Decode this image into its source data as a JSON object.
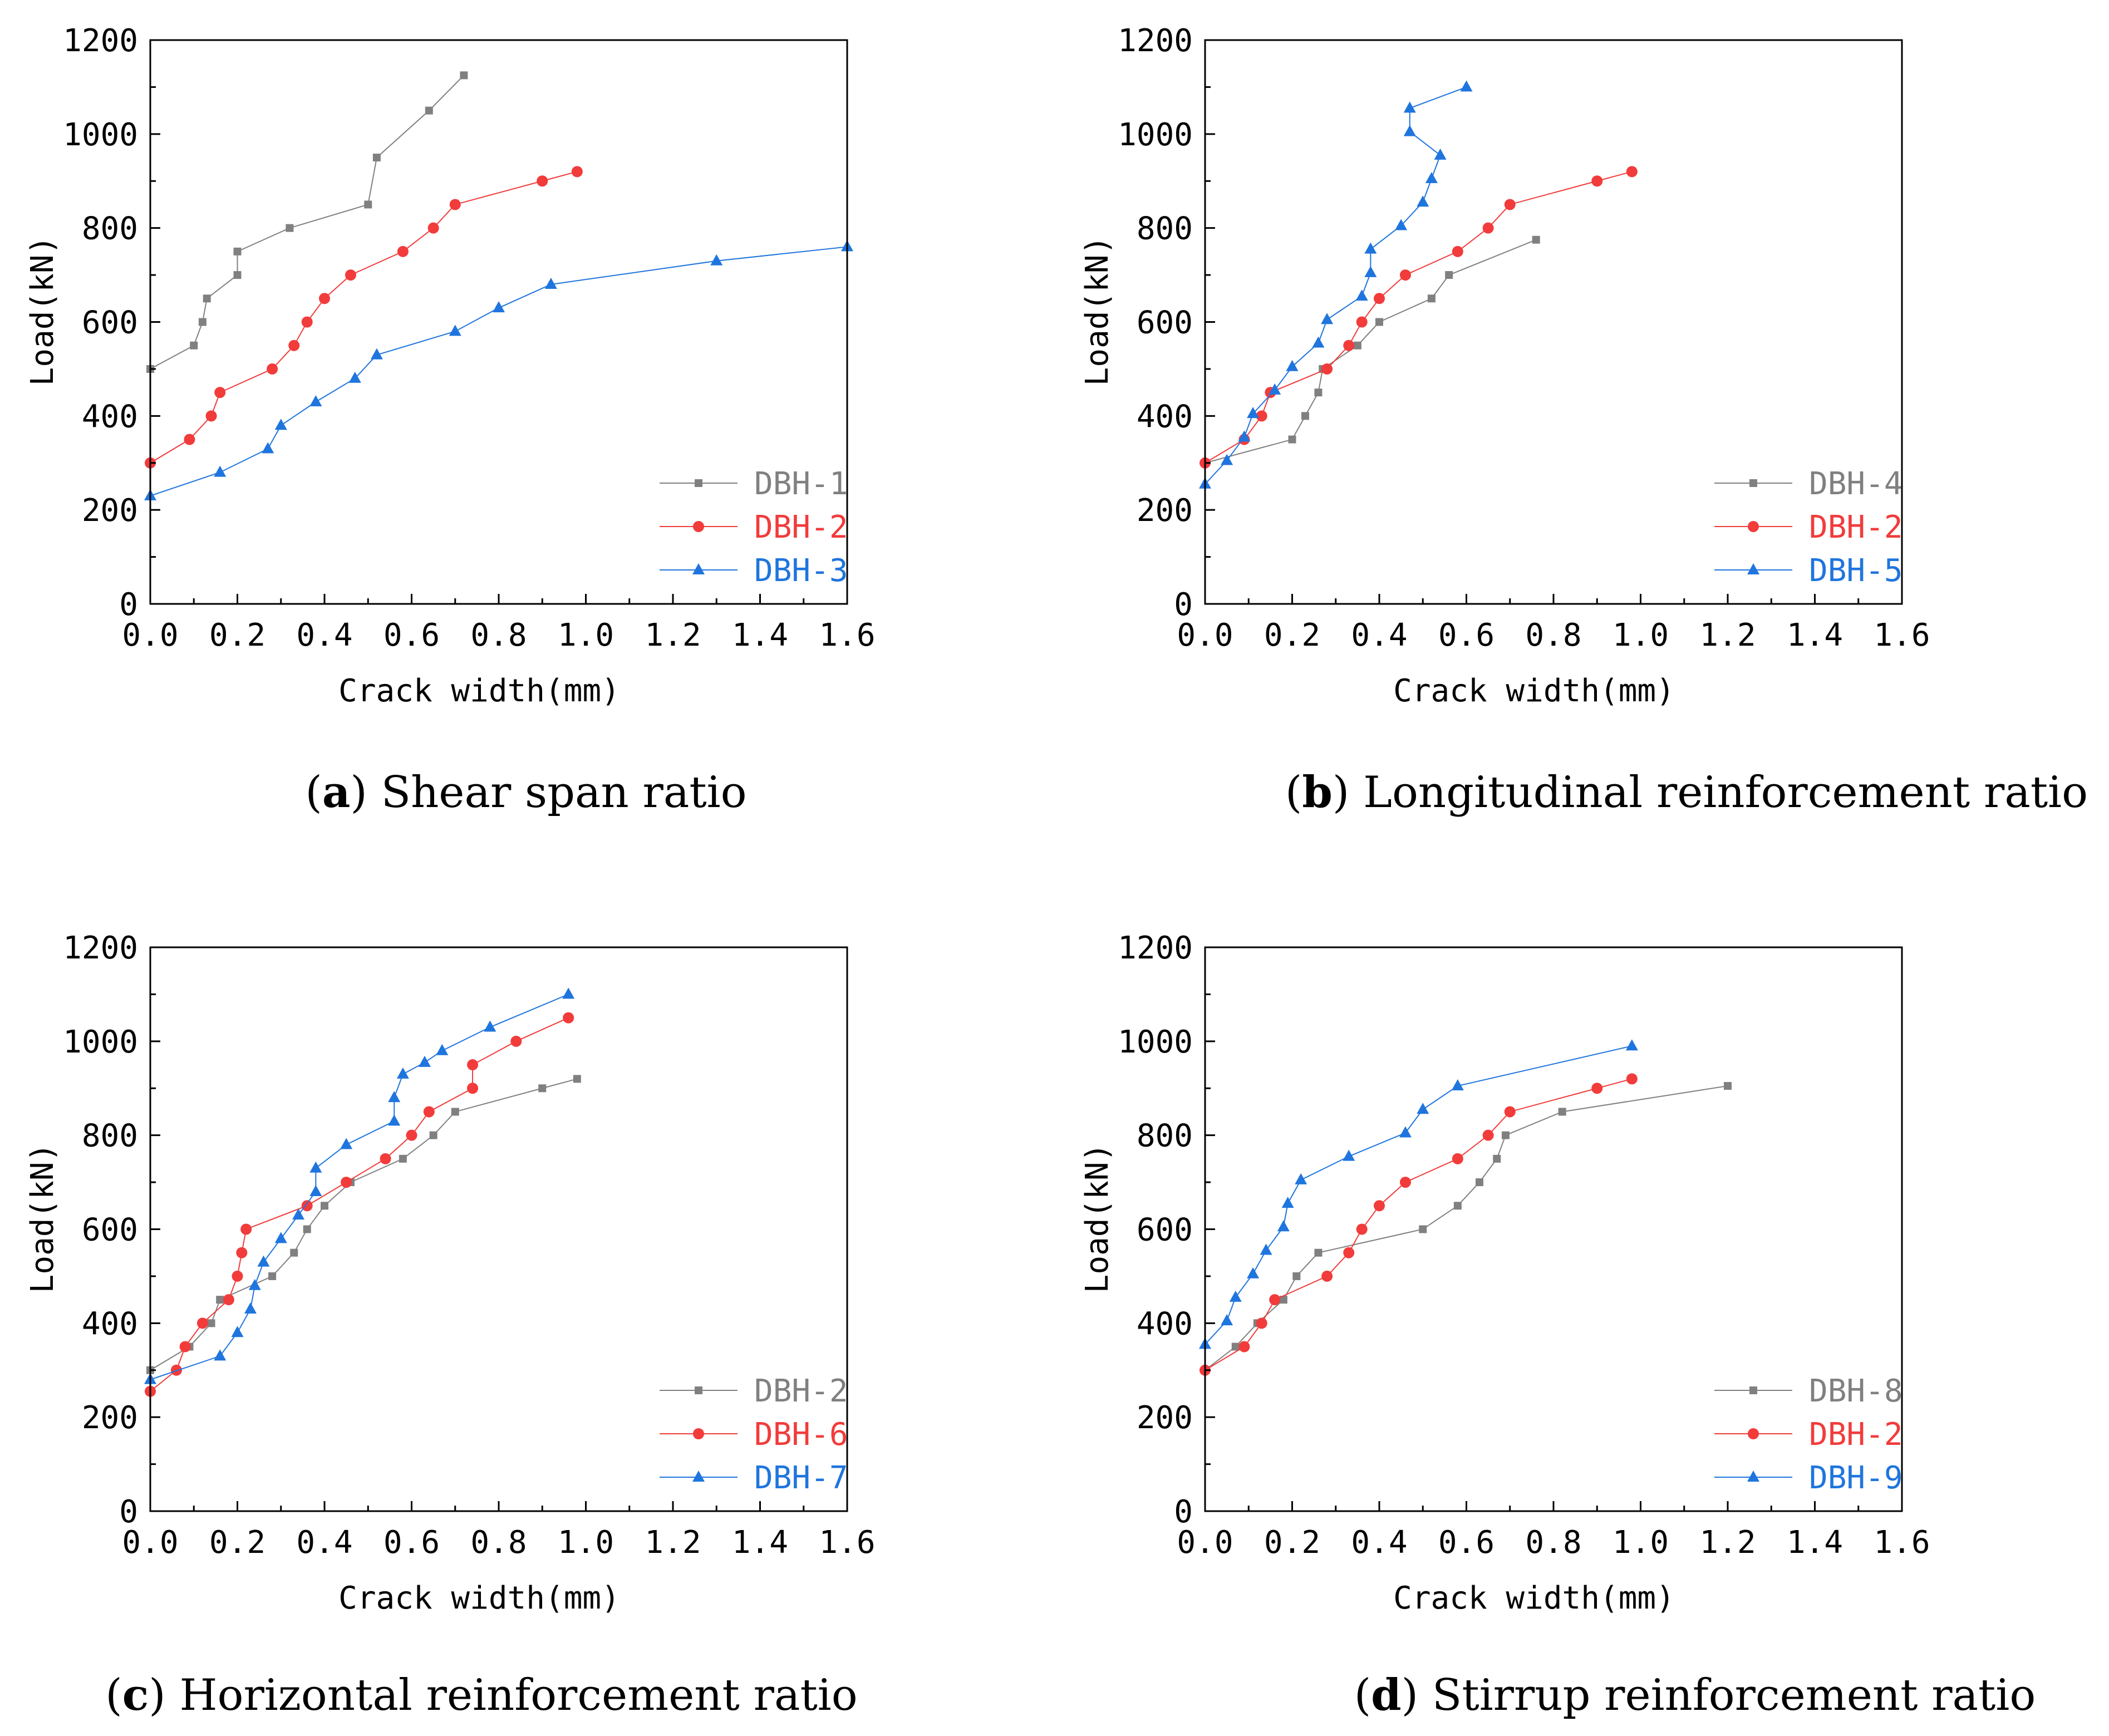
{
  "chart_data": [
    {
      "type": "line",
      "panel_label": "a",
      "title": "Shear span ratio",
      "xlabel": "Crack width(mm)",
      "ylabel": "Load(kN)",
      "xlim": [
        0,
        1.6
      ],
      "ylim": [
        0,
        1200
      ],
      "xticks": [
        "0.0",
        "0.2",
        "0.4",
        "0.6",
        "0.8",
        "1.0",
        "1.2",
        "1.4",
        "1.6"
      ],
      "yticks": [
        "0",
        "200",
        "400",
        "600",
        "800",
        "1000",
        "1200"
      ],
      "legend_position": "bottom-right",
      "series": [
        {
          "name": "DBH-1",
          "color": "#808080",
          "marker": "square",
          "x": [
            0.0,
            0.1,
            0.12,
            0.13,
            0.2,
            0.2,
            0.32,
            0.5,
            0.52,
            0.64,
            0.72
          ],
          "y": [
            500,
            550,
            600,
            650,
            700,
            750,
            800,
            850,
            950,
            1050,
            1125
          ]
        },
        {
          "name": "DBH-2",
          "color": "#f23b3b",
          "marker": "circle",
          "x": [
            0.0,
            0.09,
            0.14,
            0.16,
            0.28,
            0.33,
            0.36,
            0.4,
            0.46,
            0.58,
            0.65,
            0.7,
            0.9,
            0.98
          ],
          "y": [
            300,
            350,
            400,
            450,
            500,
            550,
            600,
            650,
            700,
            750,
            800,
            850,
            900,
            920
          ]
        },
        {
          "name": "DBH-3",
          "color": "#1f75de",
          "marker": "triangle",
          "x": [
            0.0,
            0.16,
            0.27,
            0.3,
            0.38,
            0.47,
            0.52,
            0.7,
            0.8,
            0.92,
            1.3,
            1.6
          ],
          "y": [
            230,
            280,
            330,
            380,
            430,
            480,
            530,
            580,
            630,
            680,
            730,
            760
          ]
        }
      ]
    },
    {
      "type": "line",
      "panel_label": "b",
      "title": "Longitudinal reinforcement ratio",
      "xlabel": "Crack width(mm)",
      "ylabel": "Load(kN)",
      "xlim": [
        0,
        1.6
      ],
      "ylim": [
        0,
        1200
      ],
      "xticks": [
        "0.0",
        "0.2",
        "0.4",
        "0.6",
        "0.8",
        "1.0",
        "1.2",
        "1.4",
        "1.6"
      ],
      "yticks": [
        "0",
        "200",
        "400",
        "600",
        "800",
        "1000",
        "1200"
      ],
      "legend_position": "bottom-right",
      "series": [
        {
          "name": "DBH-4",
          "color": "#808080",
          "marker": "square",
          "x": [
            0.0,
            0.2,
            0.23,
            0.26,
            0.27,
            0.35,
            0.4,
            0.52,
            0.56,
            0.76
          ],
          "y": [
            300,
            350,
            400,
            450,
            500,
            550,
            600,
            650,
            700,
            775
          ]
        },
        {
          "name": "DBH-2",
          "color": "#f23b3b",
          "marker": "circle",
          "x": [
            0.0,
            0.09,
            0.13,
            0.15,
            0.28,
            0.33,
            0.36,
            0.4,
            0.46,
            0.58,
            0.65,
            0.7,
            0.9,
            0.98
          ],
          "y": [
            300,
            350,
            400,
            450,
            500,
            550,
            600,
            650,
            700,
            750,
            800,
            850,
            900,
            920
          ]
        },
        {
          "name": "DBH-5",
          "color": "#1f75de",
          "marker": "triangle",
          "x": [
            0.0,
            0.05,
            0.09,
            0.11,
            0.16,
            0.2,
            0.26,
            0.28,
            0.36,
            0.38,
            0.38,
            0.45,
            0.5,
            0.52,
            0.54,
            0.47,
            0.47,
            0.6
          ],
          "y": [
            255,
            305,
            355,
            405,
            455,
            505,
            555,
            605,
            655,
            705,
            755,
            805,
            855,
            905,
            955,
            1005,
            1055,
            1100
          ]
        }
      ]
    },
    {
      "type": "line",
      "panel_label": "c",
      "title": "Horizontal reinforcement ratio",
      "xlabel": "Crack width(mm)",
      "ylabel": "Load(kN)",
      "xlim": [
        0,
        1.6
      ],
      "ylim": [
        0,
        1200
      ],
      "xticks": [
        "0.0",
        "0.2",
        "0.4",
        "0.6",
        "0.8",
        "1.0",
        "1.2",
        "1.4",
        "1.6"
      ],
      "yticks": [
        "0",
        "200",
        "400",
        "600",
        "800",
        "1000",
        "1200"
      ],
      "legend_position": "bottom-right",
      "series": [
        {
          "name": "DBH-2",
          "color": "#808080",
          "marker": "square",
          "x": [
            0.0,
            0.09,
            0.14,
            0.16,
            0.28,
            0.33,
            0.36,
            0.4,
            0.46,
            0.58,
            0.65,
            0.7,
            0.9,
            0.98
          ],
          "y": [
            300,
            350,
            400,
            450,
            500,
            550,
            600,
            650,
            700,
            750,
            800,
            850,
            900,
            920
          ]
        },
        {
          "name": "DBH-6",
          "color": "#f23b3b",
          "marker": "circle",
          "x": [
            0.0,
            0.06,
            0.08,
            0.12,
            0.18,
            0.2,
            0.21,
            0.22,
            0.36,
            0.45,
            0.54,
            0.6,
            0.64,
            0.74,
            0.74,
            0.84,
            0.96
          ],
          "y": [
            255,
            300,
            350,
            400,
            450,
            500,
            550,
            600,
            650,
            700,
            750,
            800,
            850,
            900,
            950,
            1000,
            1050
          ]
        },
        {
          "name": "DBH-7",
          "color": "#1f75de",
          "marker": "triangle",
          "x": [
            0.0,
            0.16,
            0.2,
            0.23,
            0.24,
            0.26,
            0.3,
            0.34,
            0.38,
            0.38,
            0.45,
            0.56,
            0.56,
            0.58,
            0.63,
            0.67,
            0.78,
            0.96
          ],
          "y": [
            280,
            330,
            380,
            430,
            480,
            530,
            580,
            630,
            680,
            730,
            780,
            830,
            880,
            930,
            955,
            980,
            1030,
            1100
          ]
        }
      ]
    },
    {
      "type": "line",
      "panel_label": "d",
      "title": "Stirrup reinforcement ratio",
      "xlabel": "Crack width(mm)",
      "ylabel": "Load(kN)",
      "xlim": [
        0,
        1.6
      ],
      "ylim": [
        0,
        1200
      ],
      "xticks": [
        "0.0",
        "0.2",
        "0.4",
        "0.6",
        "0.8",
        "1.0",
        "1.2",
        "1.4",
        "1.6"
      ],
      "yticks": [
        "0",
        "200",
        "400",
        "600",
        "800",
        "1000",
        "1200"
      ],
      "legend_position": "bottom-right",
      "series": [
        {
          "name": "DBH-8",
          "color": "#808080",
          "marker": "square",
          "x": [
            0.0,
            0.07,
            0.12,
            0.18,
            0.21,
            0.26,
            0.5,
            0.58,
            0.63,
            0.67,
            0.69,
            0.82,
            1.2
          ],
          "y": [
            300,
            350,
            400,
            450,
            500,
            550,
            600,
            650,
            700,
            750,
            800,
            850,
            905
          ]
        },
        {
          "name": "DBH-2",
          "color": "#f23b3b",
          "marker": "circle",
          "x": [
            0.0,
            0.09,
            0.13,
            0.16,
            0.28,
            0.33,
            0.36,
            0.4,
            0.46,
            0.58,
            0.65,
            0.7,
            0.9,
            0.98
          ],
          "y": [
            300,
            350,
            400,
            450,
            500,
            550,
            600,
            650,
            700,
            750,
            800,
            850,
            900,
            920
          ]
        },
        {
          "name": "DBH-9",
          "color": "#1f75de",
          "marker": "triangle",
          "x": [
            0.0,
            0.05,
            0.07,
            0.11,
            0.14,
            0.18,
            0.19,
            0.22,
            0.33,
            0.46,
            0.5,
            0.58,
            0.98
          ],
          "y": [
            355,
            405,
            455,
            505,
            555,
            605,
            655,
            705,
            755,
            805,
            855,
            905,
            990
          ]
        }
      ]
    }
  ]
}
